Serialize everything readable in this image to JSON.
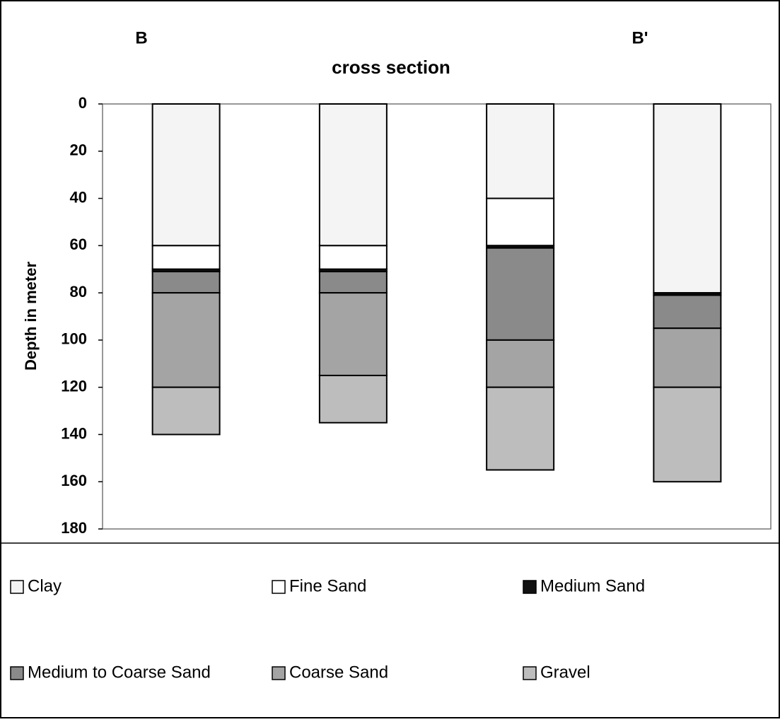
{
  "chart_data": {
    "type": "stacked-bar",
    "title": "cross section",
    "annotations": [
      "B",
      "B'"
    ],
    "y_label": "Depth in meter",
    "categories": [
      null,
      null,
      null,
      null
    ],
    "series": [
      {
        "name": "Clay",
        "color": "#f4f4f4",
        "values": [
          60,
          60,
          40,
          80
        ]
      },
      {
        "name": "Fine Sand",
        "color": "#ffffff",
        "values": [
          10,
          10,
          20,
          0
        ]
      },
      {
        "name": "Medium Sand",
        "color": "#111111",
        "values": [
          1,
          1,
          1,
          1
        ]
      },
      {
        "name": "Medium to Coarse Sand",
        "color": "#8a8a8a",
        "values": [
          9,
          9,
          39,
          14
        ]
      },
      {
        "name": "Coarse Sand",
        "color": "#a4a4a4",
        "values": [
          40,
          35,
          20,
          25
        ]
      },
      {
        "name": "Gravel",
        "color": "#bdbdbd",
        "values": [
          20,
          20,
          35,
          40
        ]
      }
    ],
    "ylim": [
      0,
      180
    ],
    "yticks": [
      0,
      20,
      40,
      60,
      80,
      100,
      120,
      140,
      160,
      180
    ],
    "y_inverted": true,
    "grid": false
  }
}
